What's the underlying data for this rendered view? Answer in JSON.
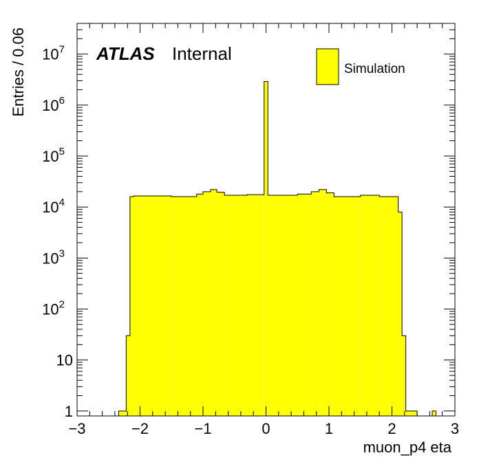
{
  "chart_data": {
    "type": "bar",
    "xlabel": "muon_p4 eta",
    "ylabel": "Entries / 0.06",
    "xlim": [
      -3,
      3
    ],
    "ylim": [
      0.8,
      40000000
    ],
    "yscale": "log",
    "bin_width": 0.06,
    "x_tick_labels": [
      "−3",
      "−2",
      "−1",
      "0",
      "1",
      "2",
      "3"
    ],
    "y_tick_labels": [
      {
        "base": "1",
        "exp": ""
      },
      {
        "base": "10",
        "exp": ""
      },
      {
        "base": "10",
        "exp": "2"
      },
      {
        "base": "10",
        "exp": "3"
      },
      {
        "base": "10",
        "exp": "4"
      },
      {
        "base": "10",
        "exp": "5"
      },
      {
        "base": "10",
        "exp": "6"
      },
      {
        "base": "10",
        "exp": "7"
      }
    ],
    "atlas_label": "ATLAS",
    "atlas_status": "Internal",
    "legend": {
      "placement": "top-right",
      "entries": [
        "Simulation"
      ]
    },
    "fill_color": "#ffff00",
    "edge_color": "#000000",
    "series": [
      {
        "name": "Simulation",
        "bins": [
          {
            "lo": -2.34,
            "hi": -2.22,
            "value": 1
          },
          {
            "lo": -2.22,
            "hi": -2.16,
            "value": 30
          },
          {
            "lo": -2.16,
            "hi": -2.1,
            "value": 16000
          },
          {
            "lo": -2.1,
            "hi": -1.5,
            "value": 16500
          },
          {
            "lo": -1.5,
            "hi": -1.1,
            "value": 16000
          },
          {
            "lo": -1.1,
            "hi": -1.0,
            "value": 18000
          },
          {
            "lo": -1.0,
            "hi": -0.88,
            "value": 20000
          },
          {
            "lo": -0.88,
            "hi": -0.78,
            "value": 22000
          },
          {
            "lo": -0.78,
            "hi": -0.66,
            "value": 19500
          },
          {
            "lo": -0.66,
            "hi": -0.3,
            "value": 17000
          },
          {
            "lo": -0.3,
            "hi": -0.03,
            "value": 17500
          },
          {
            "lo": -0.03,
            "hi": 0.03,
            "value": 2900000
          },
          {
            "lo": 0.03,
            "hi": 0.5,
            "value": 17000
          },
          {
            "lo": 0.5,
            "hi": 0.72,
            "value": 18000
          },
          {
            "lo": 0.72,
            "hi": 0.84,
            "value": 20000
          },
          {
            "lo": 0.84,
            "hi": 0.96,
            "value": 22000
          },
          {
            "lo": 0.96,
            "hi": 1.08,
            "value": 19000
          },
          {
            "lo": 1.08,
            "hi": 1.5,
            "value": 16000
          },
          {
            "lo": 1.5,
            "hi": 1.8,
            "value": 17000
          },
          {
            "lo": 1.8,
            "hi": 2.1,
            "value": 16000
          },
          {
            "lo": 2.1,
            "hi": 2.16,
            "value": 8000
          },
          {
            "lo": 2.16,
            "hi": 2.22,
            "value": 30
          },
          {
            "lo": 2.22,
            "hi": 2.4,
            "value": 1
          },
          {
            "lo": 2.64,
            "hi": 2.7,
            "value": 1
          }
        ]
      }
    ]
  }
}
